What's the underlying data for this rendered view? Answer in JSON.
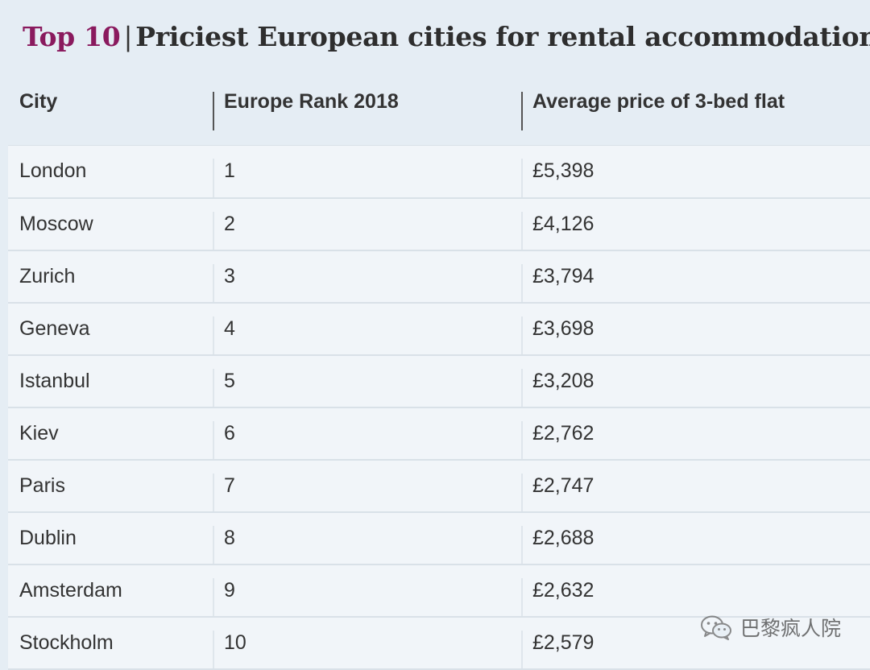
{
  "title": {
    "accent": "Top 10",
    "separator": "|",
    "main": "Priciest European cities for rental accommodation"
  },
  "chart_data": {
    "type": "table",
    "columns": [
      "City",
      "Europe Rank 2018",
      "Average price of 3-bed flat"
    ],
    "rows": [
      [
        "London",
        "1",
        "£5,398"
      ],
      [
        "Moscow",
        "2",
        "£4,126"
      ],
      [
        "Zurich",
        "3",
        "£3,794"
      ],
      [
        "Geneva",
        "4",
        "£3,698"
      ],
      [
        "Istanbul",
        "5",
        "£3,208"
      ],
      [
        "Kiev",
        "6",
        "£2,762"
      ],
      [
        "Paris",
        "7",
        "£2,747"
      ],
      [
        "Dublin",
        "8",
        "£2,688"
      ],
      [
        "Amsterdam",
        "9",
        "£2,632"
      ],
      [
        "Stockholm",
        "10",
        "£2,579"
      ]
    ]
  },
  "watermark": {
    "icon": "wechat-icon",
    "text": "巴黎疯人院"
  },
  "colors": {
    "accent": "#8a1a5e",
    "background": "#e5edf4",
    "row_background": "#f1f5f9",
    "text": "#333333"
  }
}
